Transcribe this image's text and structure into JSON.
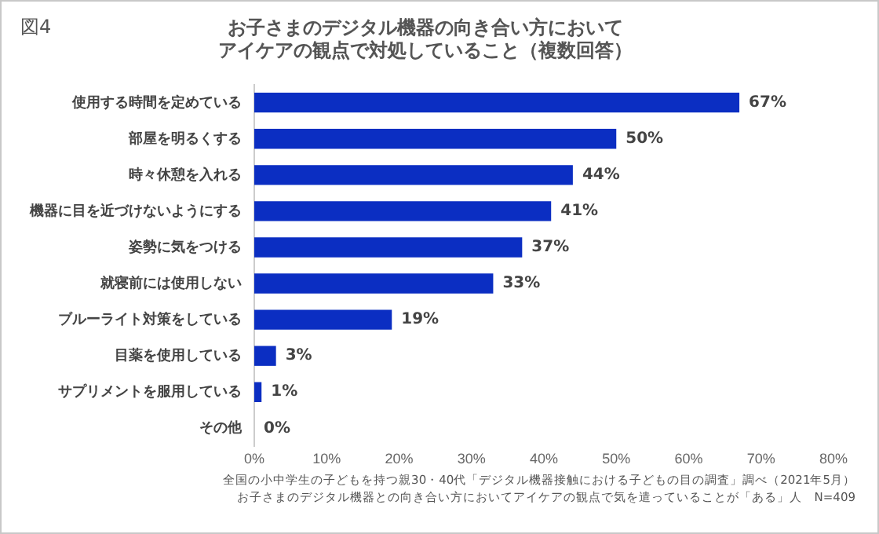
{
  "chart_data": {
    "type": "bar",
    "orientation": "horizontal",
    "title": "お子さまのデジタル機器の向き合い方においてアイケアの観点で対処していること（複数回答）",
    "categories": [
      "使用する時間を定めている",
      "部屋を明るくする",
      "時々休憩を入れる",
      "機器に目を近づけないようにする",
      "姿勢に気をつける",
      "就寝前には使用しない",
      "ブルーライト対策をしている",
      "目薬を使用している",
      "サプリメントを服用している",
      "その他"
    ],
    "values": [
      67,
      50,
      44,
      41,
      37,
      33,
      19,
      3,
      1,
      0
    ],
    "value_labels": [
      "67%",
      "50%",
      "44%",
      "41%",
      "37%",
      "33%",
      "19%",
      "3%",
      "1%",
      "0%"
    ],
    "color": "#0b2ec2",
    "xlim": [
      0,
      80
    ],
    "xticks": [
      {
        "value": 0,
        "label": "0%"
      },
      {
        "value": 10,
        "label": "10%"
      },
      {
        "value": 20,
        "label": "20%"
      },
      {
        "value": 30,
        "label": "30%"
      },
      {
        "value": 40,
        "label": "40%"
      },
      {
        "value": 50,
        "label": "50%"
      },
      {
        "value": 60,
        "label": "60%"
      },
      {
        "value": 70,
        "label": "70%"
      },
      {
        "value": 80,
        "label": "80%"
      }
    ],
    "grid": false,
    "legend": false,
    "annotations": [
      "図4",
      "全国の小中学生の子どもを持つ親30・40代「デジタル機器接触における子どもの目の調査」調べ（2021年5月）",
      "お子さまのデジタル機器との向き合い方においてアイケアの観点で気を遣っていることが「ある」人　N=409"
    ]
  }
}
